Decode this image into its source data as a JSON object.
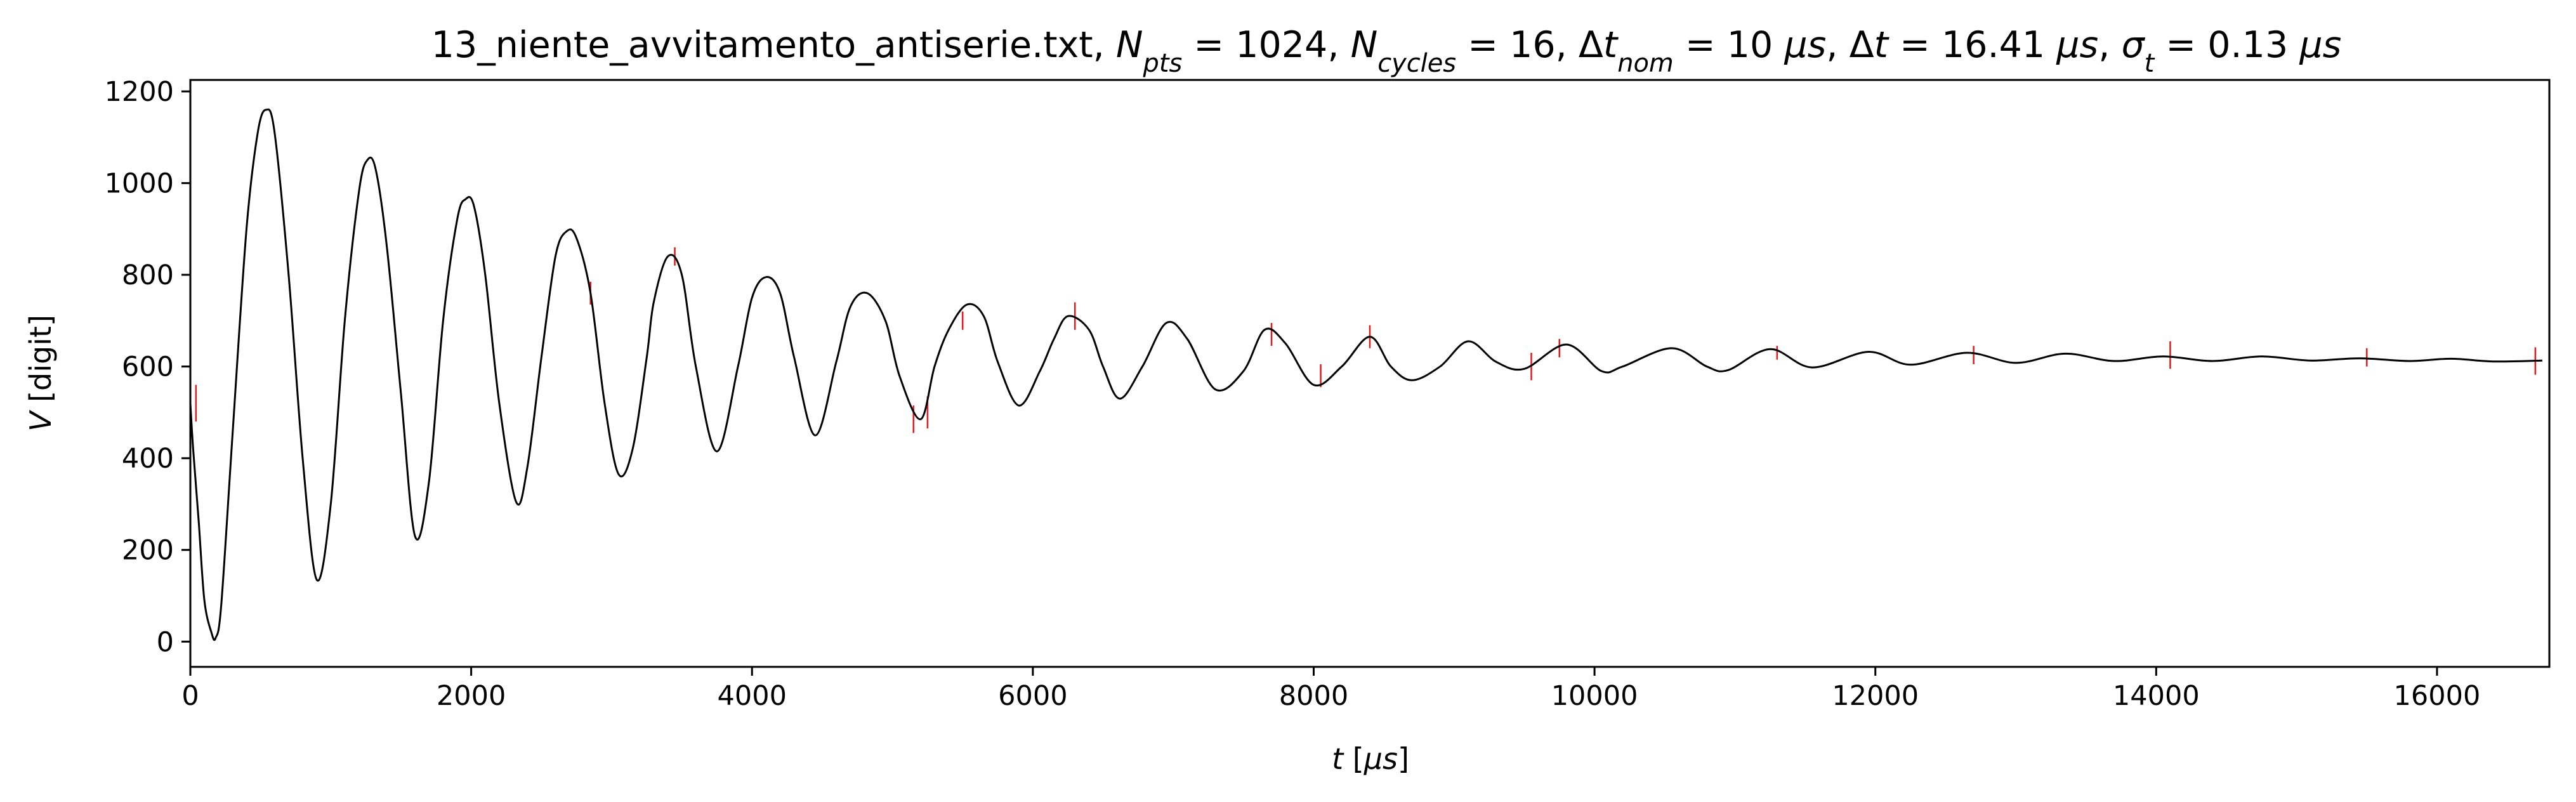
{
  "colors": {
    "fit_line": "#000000",
    "data_errorbars": "#e41a1c",
    "frame": "#000000",
    "background": "#ffffff"
  },
  "chart_data": {
    "type": "line",
    "title_parts": [
      {
        "text": "13_niente_avvitamento_antiserie.txt, ",
        "style": "normal"
      },
      {
        "text": "N",
        "style": "italic"
      },
      {
        "text": "pts",
        "style": "italic-sub"
      },
      {
        "text": " = 1024, ",
        "style": "normal"
      },
      {
        "text": "N",
        "style": "italic"
      },
      {
        "text": "cycles",
        "style": "italic-sub"
      },
      {
        "text": " = 16, Δ",
        "style": "normal"
      },
      {
        "text": "t",
        "style": "italic"
      },
      {
        "text": "nom",
        "style": "italic-sub"
      },
      {
        "text": " = 10 ",
        "style": "normal"
      },
      {
        "text": "μs",
        "style": "italic"
      },
      {
        "text": ", Δ",
        "style": "normal"
      },
      {
        "text": "t",
        "style": "italic"
      },
      {
        "text": " = 16.41 ",
        "style": "normal"
      },
      {
        "text": "μs",
        "style": "italic"
      },
      {
        "text": ", ",
        "style": "normal"
      },
      {
        "text": "σ",
        "style": "italic"
      },
      {
        "text": "t",
        "style": "italic-sub"
      },
      {
        "text": " = 0.13 ",
        "style": "normal"
      },
      {
        "text": "μs",
        "style": "italic"
      }
    ],
    "xlabel_parts": [
      {
        "text": "t",
        "style": "italic"
      },
      {
        "text": " [",
        "style": "normal"
      },
      {
        "text": "μs",
        "style": "italic"
      },
      {
        "text": "]",
        "style": "normal"
      }
    ],
    "ylabel_parts": [
      {
        "text": "V",
        "style": "italic"
      },
      {
        "text": " [digit]",
        "style": "normal"
      }
    ],
    "xlim": [
      0,
      16800
    ],
    "ylim": [
      -55,
      1225
    ],
    "xticks": [
      0,
      2000,
      4000,
      6000,
      8000,
      10000,
      12000,
      14000,
      16000
    ],
    "xtick_labels": [
      "0",
      "2000",
      "4000",
      "6000",
      "8000",
      "10000",
      "12000",
      "14000",
      "16000"
    ],
    "yticks": [
      0,
      200,
      400,
      600,
      800,
      1000,
      1200
    ],
    "ytick_labels": [
      "0",
      "200",
      "400",
      "600",
      "800",
      "1000",
      "1200"
    ],
    "grid": false,
    "series": [
      {
        "kind": "line",
        "color": "#000000",
        "x": [
          0,
          20,
          60,
          100,
          150,
          180,
          220,
          300,
          400,
          480,
          540,
          600,
          700,
          800,
          900,
          1000,
          1100,
          1200,
          1260,
          1320,
          1400,
          1500,
          1600,
          1700,
          1800,
          1900,
          1960,
          2020,
          2100,
          2200,
          2320,
          2400,
          2500,
          2600,
          2680,
          2750,
          2850,
          2950,
          3050,
          3150,
          3250,
          3300,
          3400,
          3500,
          3600,
          3750,
          3900,
          4000,
          4100,
          4200,
          4300,
          4450,
          4600,
          4700,
          4820,
          4950,
          5050,
          5200,
          5300,
          5400,
          5530,
          5650,
          5750,
          5900,
          6050,
          6150,
          6250,
          6400,
          6500,
          6620,
          6780,
          6950,
          7100,
          7300,
          7500,
          7650,
          7800,
          8000,
          8200,
          8400,
          8550,
          8700,
          8900,
          9100,
          9300,
          9500,
          9800,
          10050,
          10200,
          10550,
          10800,
          10950,
          11250,
          11550,
          11950,
          12250,
          12650,
          13000,
          13350,
          13700,
          14050,
          14400,
          14750,
          15100,
          15450,
          15800,
          16100,
          16400,
          16750
        ],
        "y": [
          520,
          420,
          260,
          90,
          20,
          8,
          80,
          450,
          900,
          1110,
          1160,
          1110,
          800,
          400,
          135,
          300,
          700,
          980,
          1050,
          1030,
          860,
          540,
          230,
          350,
          700,
          920,
          965,
          950,
          800,
          520,
          305,
          380,
          620,
          840,
          895,
          880,
          760,
          520,
          365,
          420,
          620,
          740,
          840,
          800,
          600,
          415,
          600,
          750,
          795,
          760,
          620,
          450,
          610,
          730,
          760,
          700,
          580,
          485,
          600,
          680,
          735,
          710,
          610,
          515,
          590,
          660,
          710,
          680,
          600,
          530,
          600,
          695,
          660,
          550,
          590,
          680,
          650,
          560,
          600,
          665,
          600,
          570,
          600,
          655,
          610,
          595,
          648,
          590,
          600,
          640,
          600,
          592,
          638,
          598,
          632,
          604,
          630,
          608,
          628,
          612,
          622,
          612,
          622,
          613,
          618,
          612,
          617,
          611,
          613
        ]
      },
      {
        "kind": "errorbars",
        "color": "#e41a1c",
        "points": [
          {
            "x": 40,
            "y": 520,
            "err": 40
          },
          {
            "x": 2850,
            "y": 760,
            "err": 25
          },
          {
            "x": 3450,
            "y": 840,
            "err": 20
          },
          {
            "x": 5150,
            "y": 485,
            "err": 30
          },
          {
            "x": 5250,
            "y": 500,
            "err": 35
          },
          {
            "x": 5500,
            "y": 700,
            "err": 20
          },
          {
            "x": 6300,
            "y": 710,
            "err": 30
          },
          {
            "x": 7700,
            "y": 670,
            "err": 25
          },
          {
            "x": 8050,
            "y": 580,
            "err": 25
          },
          {
            "x": 8400,
            "y": 665,
            "err": 25
          },
          {
            "x": 9550,
            "y": 600,
            "err": 30
          },
          {
            "x": 9750,
            "y": 640,
            "err": 20
          },
          {
            "x": 11300,
            "y": 630,
            "err": 15
          },
          {
            "x": 12700,
            "y": 625,
            "err": 20
          },
          {
            "x": 14100,
            "y": 625,
            "err": 30
          },
          {
            "x": 15500,
            "y": 620,
            "err": 20
          },
          {
            "x": 16700,
            "y": 612,
            "err": 30
          }
        ]
      }
    ]
  }
}
